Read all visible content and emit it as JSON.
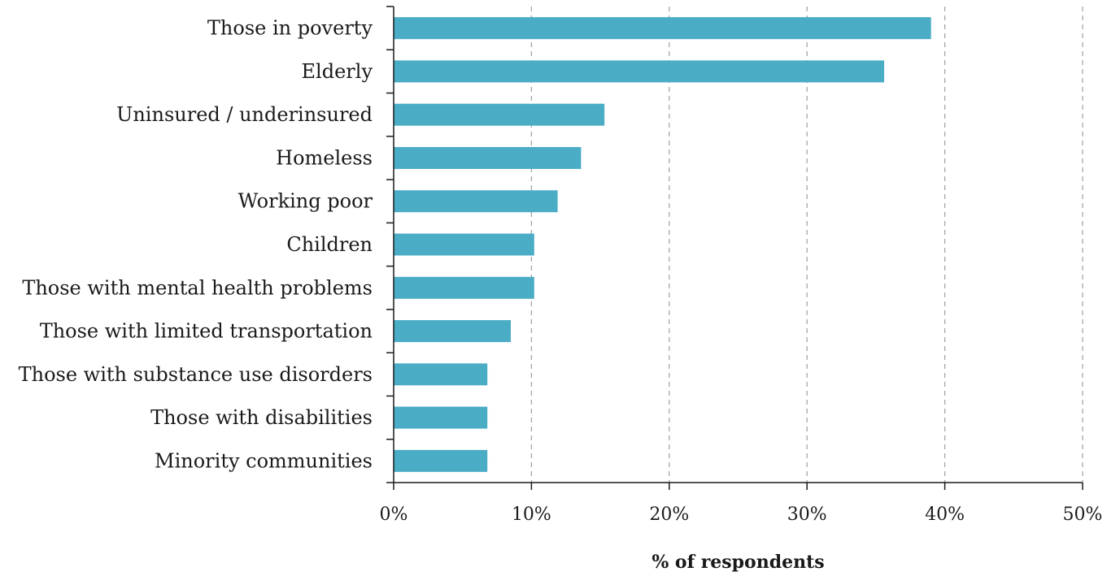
{
  "chart_data": {
    "type": "bar",
    "orientation": "horizontal",
    "title": "",
    "xlabel": "% of respondents",
    "ylabel": "",
    "categories": [
      "Those in poverty",
      "Elderly",
      "Uninsured / underinsured",
      "Homeless",
      "Working poor",
      "Children",
      "Those with mental health problems",
      "Those with limited transportation",
      "Those with substance use disorders",
      "Those with disabilities",
      "Minority communities"
    ],
    "values": [
      39.0,
      35.6,
      15.3,
      13.6,
      11.9,
      10.2,
      10.2,
      8.5,
      6.8,
      6.8,
      6.8
    ],
    "xlim": [
      0,
      50
    ],
    "xticks": [
      0,
      10,
      20,
      30,
      40,
      50
    ],
    "xtick_labels": [
      "0%",
      "10%",
      "20%",
      "30%",
      "40%",
      "50%"
    ],
    "grid": "vertical dashed",
    "legend": "none",
    "colors": {
      "bar": "#4bacc6",
      "grid": "#a6a6a6",
      "axis": "#1a1a1a"
    }
  }
}
